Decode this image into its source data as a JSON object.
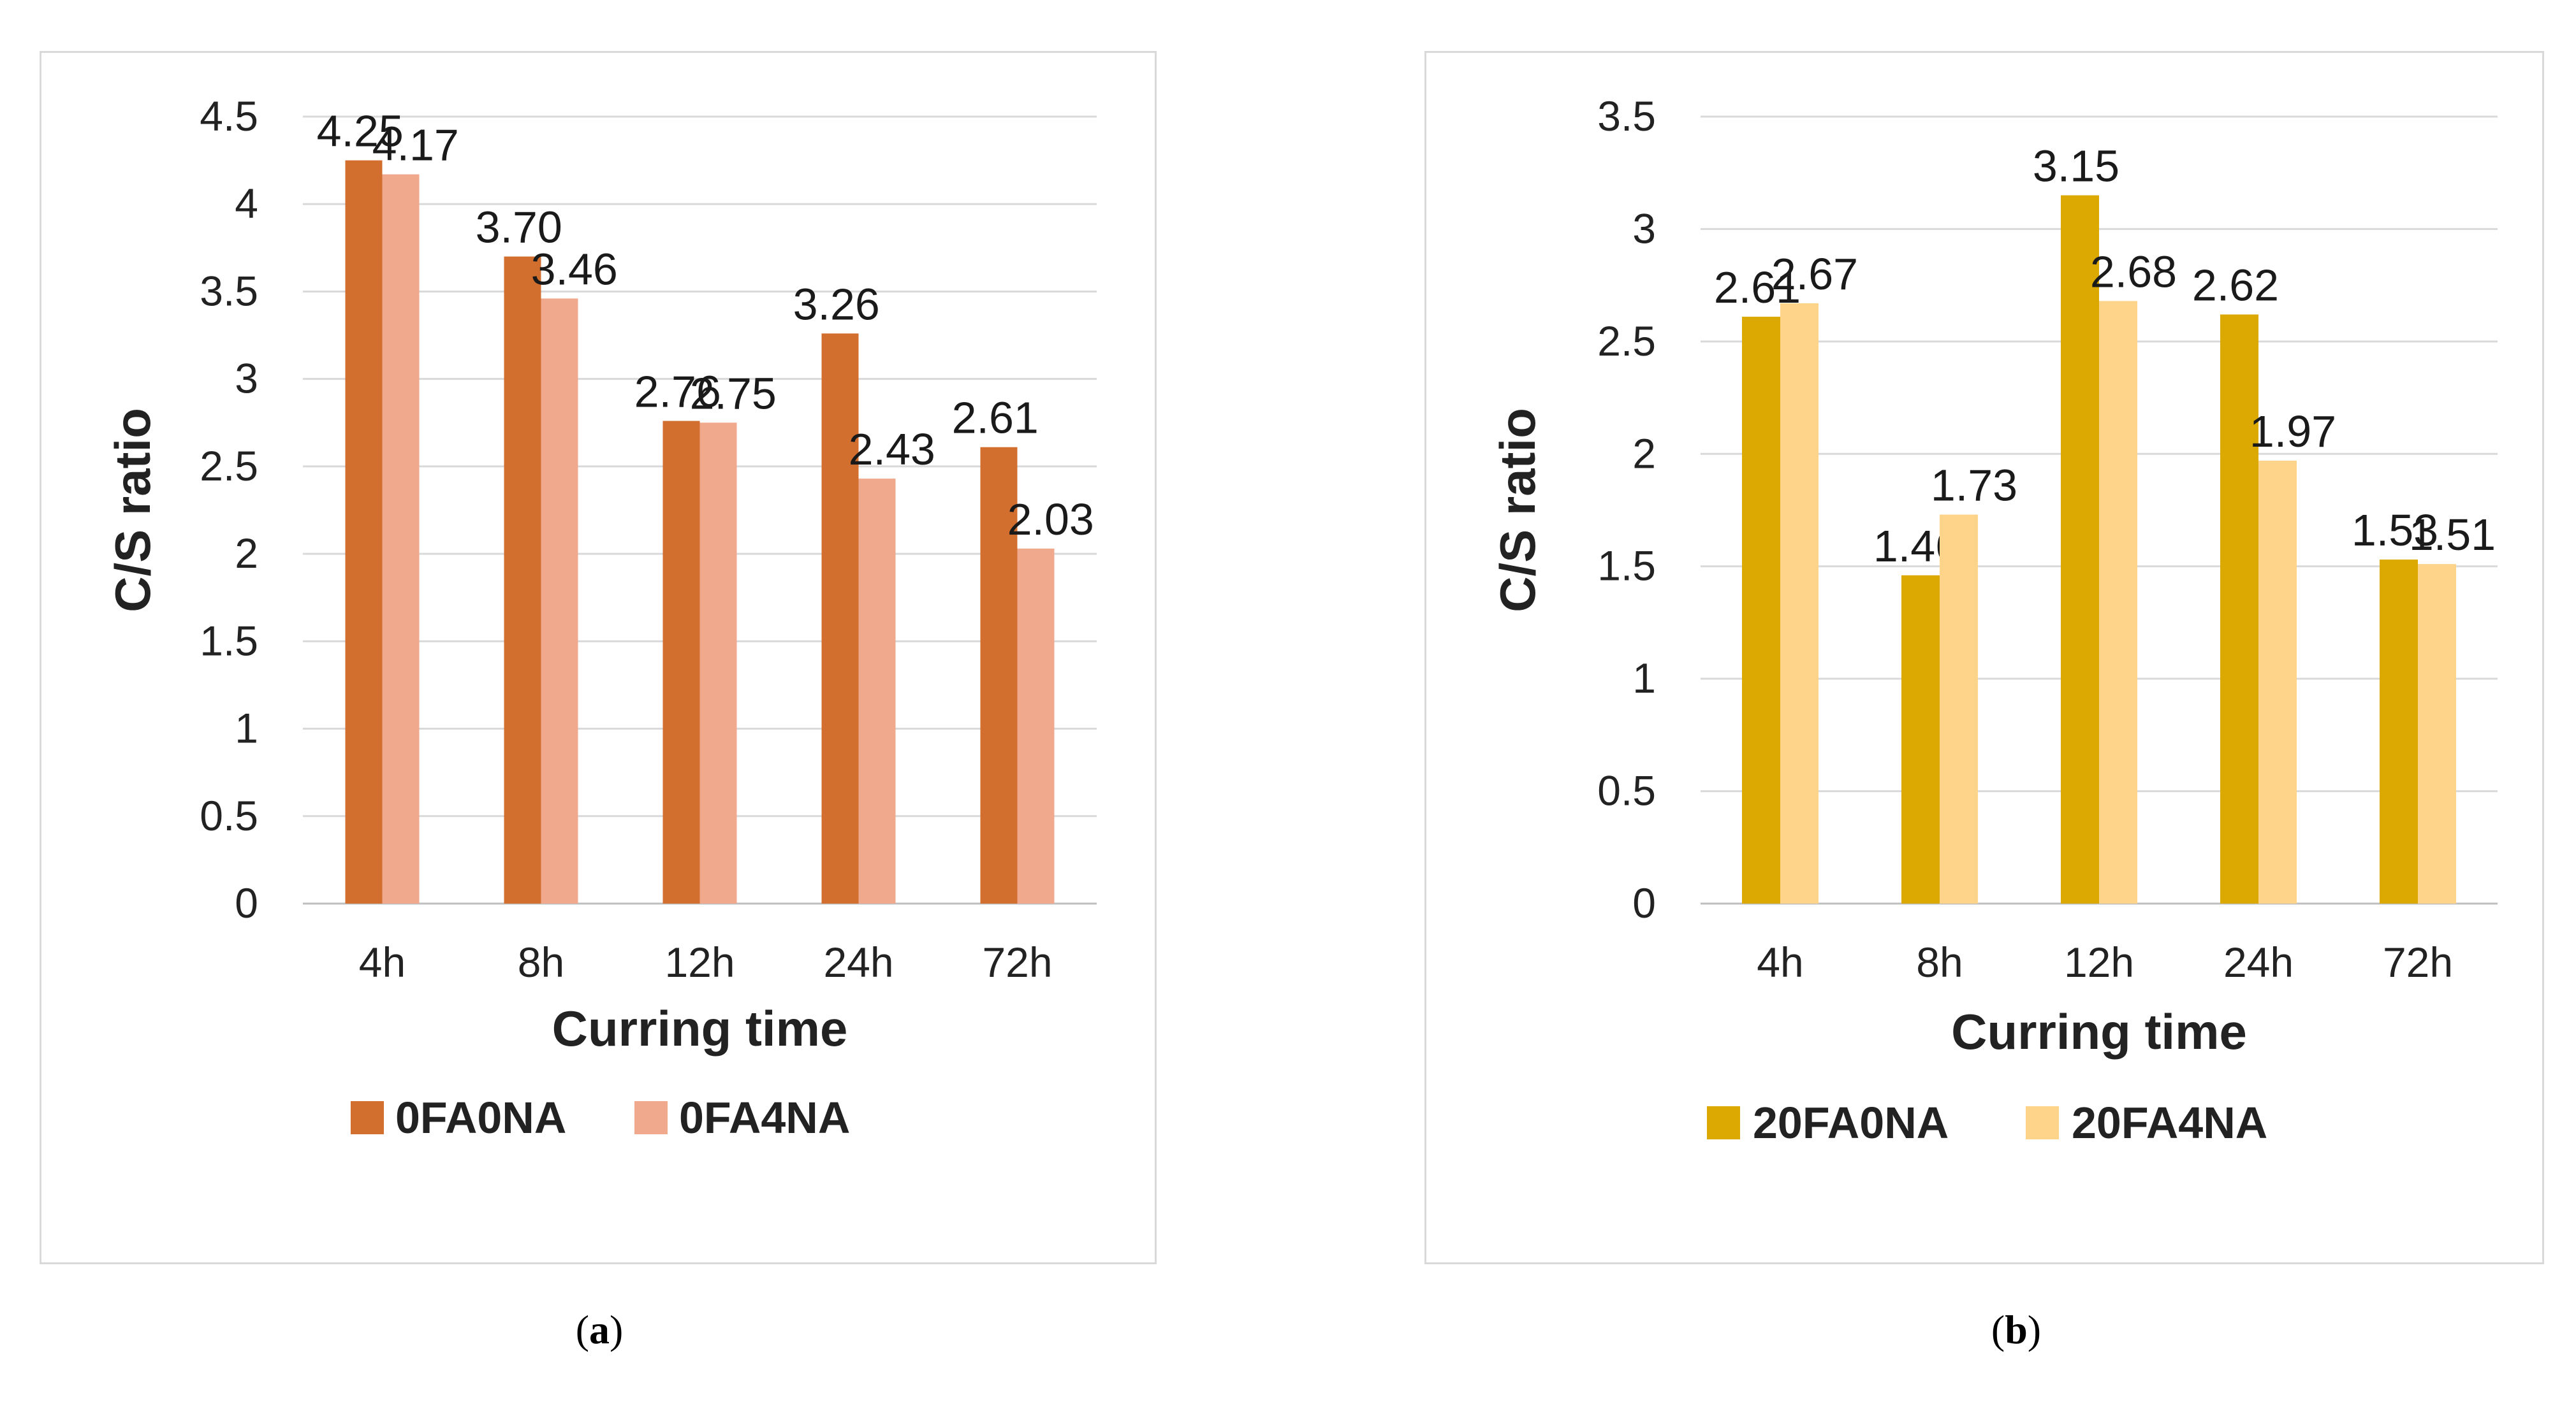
{
  "chart_data": [
    {
      "type": "bar",
      "panel_label": "a",
      "categories": [
        "4h",
        "8h",
        "12h",
        "24h",
        "72h"
      ],
      "series": [
        {
          "name": "0FA0NA",
          "color": "#d26f2f",
          "values": [
            4.25,
            3.7,
            2.76,
            3.26,
            2.61
          ],
          "labels": [
            "4.25",
            "3.70",
            "2.76",
            "3.26",
            "2.61"
          ]
        },
        {
          "name": "0FA4NA",
          "color": "#f0a98c",
          "values": [
            4.17,
            3.46,
            2.75,
            2.43,
            2.03
          ],
          "labels": [
            "4.17",
            "3.46",
            "2.75",
            "2.43",
            "2.03"
          ]
        }
      ],
      "xlabel": "Curring time",
      "ylabel": "C/S ratio",
      "ylim": [
        0,
        4.5
      ],
      "yticks": [
        0,
        0.5,
        1,
        1.5,
        2,
        2.5,
        3,
        3.5,
        4,
        4.5
      ],
      "ytick_labels": [
        "0",
        "0.5",
        "1",
        "1.5",
        "2",
        "2.5",
        "3",
        "3.5",
        "4",
        "4.5"
      ],
      "grid": true,
      "legend_position": "bottom"
    },
    {
      "type": "bar",
      "panel_label": "b",
      "categories": [
        "4h",
        "8h",
        "12h",
        "24h",
        "72h"
      ],
      "series": [
        {
          "name": "20FA0NA",
          "color": "#dca802",
          "values": [
            2.61,
            1.46,
            3.15,
            2.62,
            1.53
          ],
          "labels": [
            "2.61",
            "1.46",
            "3.15",
            "2.62",
            "1.53"
          ]
        },
        {
          "name": "20FA4NA",
          "color": "#fdd489",
          "values": [
            2.67,
            1.73,
            2.68,
            1.97,
            1.51
          ],
          "labels": [
            "2.67",
            "1.73",
            "2.68",
            "1.97",
            "1.51"
          ]
        }
      ],
      "xlabel": "Curring time",
      "ylabel": "C/S ratio",
      "ylim": [
        0,
        3.5
      ],
      "yticks": [
        0,
        0.5,
        1,
        1.5,
        2,
        2.5,
        3,
        3.5
      ],
      "ytick_labels": [
        "0",
        "0.5",
        "1",
        "1.5",
        "2",
        "2.5",
        "3",
        "3.5"
      ],
      "grid": true,
      "legend_position": "bottom"
    }
  ],
  "captions": {
    "a_open": "(",
    "a_letter": "a",
    "a_close": ")",
    "b_open": "(",
    "b_letter": "b",
    "b_close": ")"
  }
}
